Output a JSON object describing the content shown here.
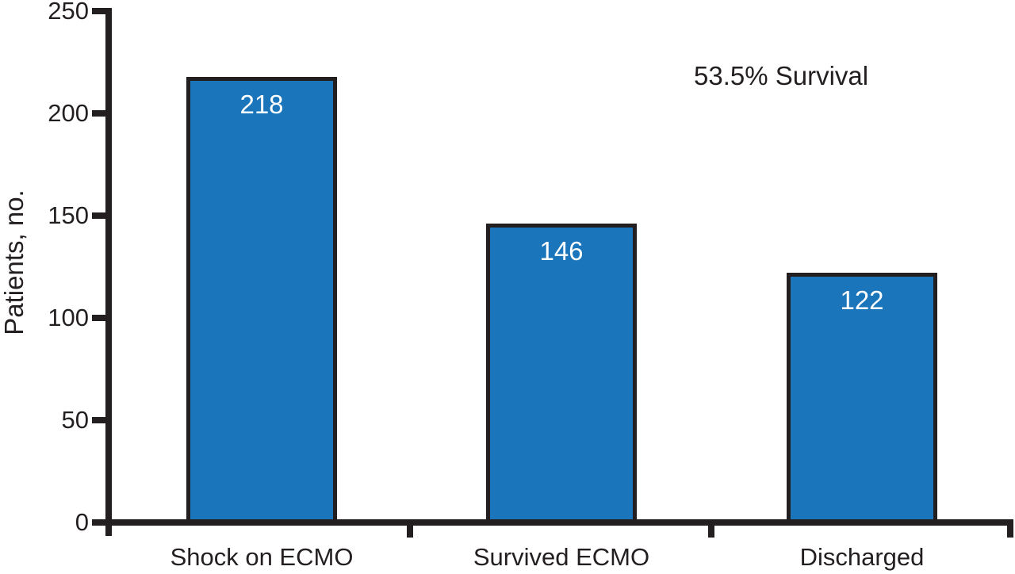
{
  "chart_data": {
    "type": "bar",
    "categories": [
      "Shock on ECMO",
      "Survived ECMO",
      "Discharged"
    ],
    "values": [
      218,
      146,
      122
    ],
    "value_labels": [
      "218",
      "146",
      "122"
    ],
    "title": "",
    "xlabel": "",
    "ylabel": "Patients, no.",
    "ylim": [
      0,
      250
    ],
    "yticks": [
      0,
      50,
      100,
      150,
      200,
      250
    ],
    "grid": false,
    "legend_position": "none",
    "annotations": [
      {
        "text": "53.5% Survival",
        "position": "upper-right"
      }
    ],
    "value_label_position": "inside-top",
    "colors": {
      "bar_fill": "#1b75bb",
      "bar_border": "#231f20",
      "axis": "#231f20",
      "text": "#231f20",
      "value_label": "#ffffff",
      "background": "#ffffff"
    }
  }
}
